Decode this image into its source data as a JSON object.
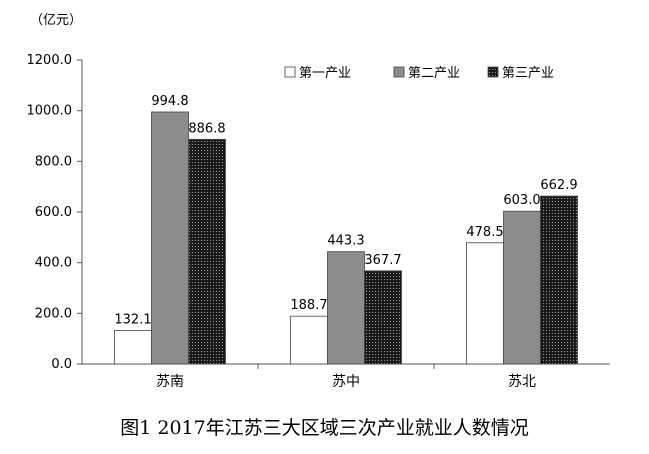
{
  "chart_data": {
    "type": "bar",
    "unit_label": "（亿元）",
    "categories": [
      "苏南",
      "苏中",
      "苏北"
    ],
    "series": [
      {
        "name": "第一产业",
        "values": [
          132.1,
          188.7,
          478.5
        ],
        "color": "#ffffff",
        "pattern": "solid-white"
      },
      {
        "name": "第二产业",
        "values": [
          994.8,
          443.3,
          603.0
        ],
        "color": "#8c8c8c",
        "pattern": "solid-gray"
      },
      {
        "name": "第三产业",
        "values": [
          886.8,
          367.7,
          662.9
        ],
        "color": "#2a2a2a",
        "pattern": "dotted-dark"
      }
    ],
    "value_labels": [
      [
        "132.1",
        "188.7",
        "478.5"
      ],
      [
        "994.8",
        "443.3",
        "603.0"
      ],
      [
        "886.8",
        "367.7",
        "662.9"
      ]
    ],
    "y_ticks": [
      "0.0",
      "200.0",
      "400.0",
      "600.0",
      "800.0",
      "1000.0",
      "1200.0"
    ],
    "ylim": [
      0,
      1200
    ],
    "legend_position": "top-right",
    "grid": false
  },
  "caption": "图1 2017年江苏三大区域三次产业就业人数情况"
}
